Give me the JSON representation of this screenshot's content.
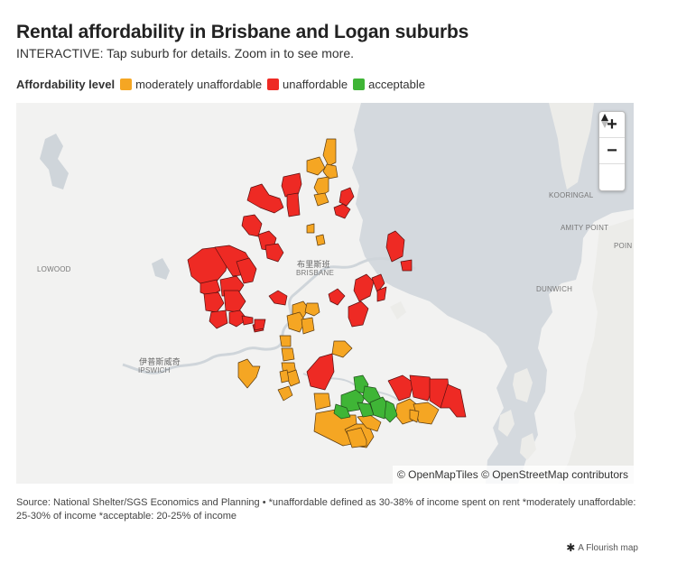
{
  "title": "Rental affordability in Brisbane and Logan suburbs",
  "subtitle": "INTERACTIVE: Tap suburb for details. Zoom in to see more.",
  "legend": {
    "title": "Affordability level",
    "items": [
      {
        "label": "moderately unaffordable",
        "color": "#f5a623"
      },
      {
        "label": "unaffordable",
        "color": "#ee2a24"
      },
      {
        "label": "acceptable",
        "color": "#3fb536"
      }
    ]
  },
  "map": {
    "controls": {
      "zoom_in": "+",
      "zoom_out": "−",
      "reset_north": "▲"
    },
    "place_labels": {
      "lowood": "LOWOOD",
      "brisbane_cn": "布里斯班",
      "brisbane": "BRISBANE",
      "ipswich_cn": "伊普斯威奇",
      "ipswich": "IPSWICH",
      "dunwich": "DUNWICH",
      "kooringal": "KOORINGAL",
      "amity_point": "AMITY POINT",
      "point": "POIN"
    },
    "attribution": "© OpenMapTiles © OpenStreetMap contributors"
  },
  "footnote": "Source: National Shelter/SGS Economics and Planning • *unaffordable defined as 30-38% of income spent on rent *moderately unaffordable: 25-30% of income *acceptable: 20-25% of income",
  "credit": "A Flourish map",
  "colors": {
    "moderately_unaffordable": "#f5a623",
    "unaffordable": "#ee2a24",
    "acceptable": "#3fb536",
    "water": "#d4d9de",
    "land": "#f2f2f1"
  }
}
